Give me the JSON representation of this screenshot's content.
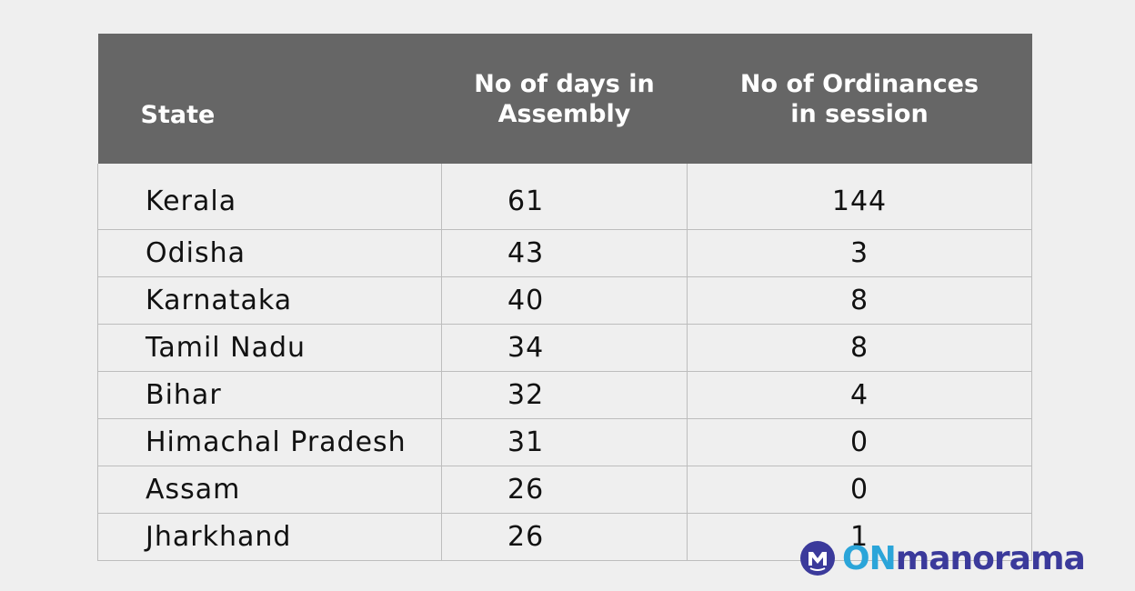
{
  "chart_data": {
    "type": "table",
    "columns": [
      "State",
      "No of days in Assembly",
      "No of Ordinances in session"
    ],
    "header_lines": {
      "state": [
        "State"
      ],
      "days": [
        "No of days in",
        "Assembly"
      ],
      "ordinances": [
        "No of Ordinances",
        "in session"
      ]
    },
    "rows": [
      {
        "state": "Kerala",
        "days": "61",
        "ordinances": "144"
      },
      {
        "state": "Odisha",
        "days": "43",
        "ordinances": "3"
      },
      {
        "state": "Karnataka",
        "days": "40",
        "ordinances": "8"
      },
      {
        "state": "Tamil Nadu",
        "days": "34",
        "ordinances": "8"
      },
      {
        "state": "Bihar",
        "days": "32",
        "ordinances": "4"
      },
      {
        "state": "Himachal Pradesh",
        "days": "31",
        "ordinances": "0"
      },
      {
        "state": "Assam",
        "days": "26",
        "ordinances": "0"
      },
      {
        "state": "Jharkhand",
        "days": "26",
        "ordinances": "1"
      }
    ]
  },
  "logo": {
    "on": "ON",
    "manorama": "manorama"
  }
}
